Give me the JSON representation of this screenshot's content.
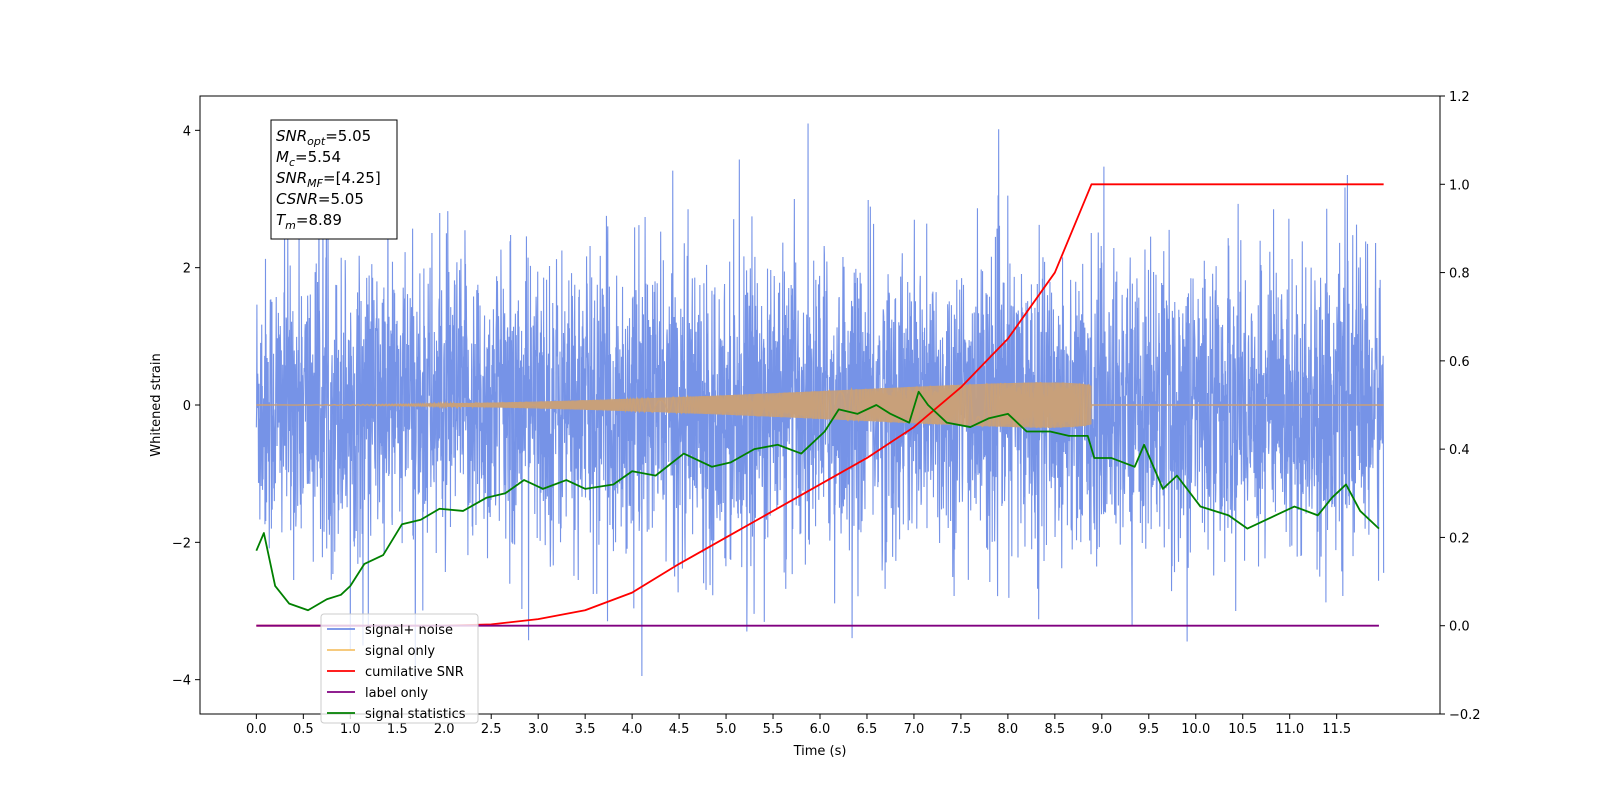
{
  "chart_data": {
    "type": "line",
    "title": "",
    "xlabel": "Time (s)",
    "ylabel": "Whitened strain",
    "y2label": "",
    "xlim": [
      -0.6,
      12.6
    ],
    "ylim": [
      -4.5,
      4.5
    ],
    "y2lim": [
      -0.2,
      1.2
    ],
    "xticks": [
      "0.0",
      "0.5",
      "1.0",
      "1.5",
      "2.0",
      "2.5",
      "3.0",
      "3.5",
      "4.0",
      "4.5",
      "5.0",
      "5.5",
      "6.0",
      "6.5",
      "7.0",
      "7.5",
      "8.0",
      "8.5",
      "9.0",
      "9.5",
      "10.0",
      "10.5",
      "11.0",
      "11.5"
    ],
    "yticks": [
      "4",
      "2",
      "0",
      "−2",
      "−4"
    ],
    "y2ticks": [
      "1.2",
      "1.0",
      "0.8",
      "0.6",
      "0.4",
      "0.2",
      "0.0",
      "−0.2"
    ],
    "grid": false,
    "legend_position": "lower-left",
    "series": [
      {
        "name": "signal+ noise",
        "axis": "left",
        "color": "#6f8de6",
        "style": "noise band",
        "x_range": [
          0.0,
          12.0
        ],
        "envelope_max": [
          4.1,
          3.9
        ],
        "envelope_min": [
          -4.0,
          -3.4
        ]
      },
      {
        "name": "signal only",
        "axis": "left",
        "color": "#f5c26b",
        "style": "chirp",
        "x_range": [
          0.0,
          8.89
        ],
        "final_amplitude": 0.55
      },
      {
        "name": "cumilative SNR",
        "axis": "right",
        "color": "#ff0000",
        "x": [
          0.0,
          2.0,
          2.5,
          3.0,
          3.5,
          4.0,
          4.5,
          5.0,
          5.5,
          6.0,
          6.5,
          7.0,
          7.5,
          8.0,
          8.5,
          8.89,
          9.5,
          10.0,
          11.0,
          12.0
        ],
        "y": [
          0.0,
          0.0,
          0.003,
          0.015,
          0.035,
          0.075,
          0.14,
          0.2,
          0.26,
          0.32,
          0.38,
          0.45,
          0.54,
          0.65,
          0.8,
          1.0,
          1.0,
          1.0,
          1.0,
          1.0
        ]
      },
      {
        "name": "label only",
        "axis": "right",
        "color": "#800080",
        "x": [
          0.0,
          11.95
        ],
        "y": [
          0.0,
          0.0
        ]
      },
      {
        "name": "signal statistics",
        "axis": "right",
        "color": "#008000",
        "x": [
          0.0,
          0.08,
          0.2,
          0.35,
          0.55,
          0.75,
          0.9,
          1.0,
          1.15,
          1.35,
          1.55,
          1.75,
          1.95,
          2.2,
          2.45,
          2.65,
          2.85,
          3.05,
          3.3,
          3.5,
          3.8,
          4.0,
          4.25,
          4.55,
          4.85,
          5.05,
          5.3,
          5.55,
          5.8,
          6.05,
          6.2,
          6.4,
          6.6,
          6.75,
          6.95,
          7.05,
          7.15,
          7.35,
          7.6,
          7.8,
          8.0,
          8.2,
          8.45,
          8.65,
          8.85,
          8.92,
          9.1,
          9.35,
          9.45,
          9.65,
          9.8,
          10.05,
          10.35,
          10.55,
          10.85,
          11.05,
          11.3,
          11.45,
          11.6,
          11.75,
          11.95
        ],
        "y": [
          0.17,
          0.21,
          0.09,
          0.05,
          0.035,
          0.06,
          0.07,
          0.09,
          0.14,
          0.16,
          0.23,
          0.24,
          0.265,
          0.26,
          0.29,
          0.3,
          0.33,
          0.31,
          0.33,
          0.31,
          0.32,
          0.35,
          0.34,
          0.39,
          0.36,
          0.37,
          0.4,
          0.41,
          0.39,
          0.44,
          0.49,
          0.48,
          0.5,
          0.48,
          0.46,
          0.53,
          0.5,
          0.46,
          0.45,
          0.47,
          0.48,
          0.44,
          0.44,
          0.43,
          0.43,
          0.38,
          0.38,
          0.36,
          0.41,
          0.31,
          0.34,
          0.27,
          0.25,
          0.22,
          0.25,
          0.27,
          0.25,
          0.29,
          0.32,
          0.26,
          0.22
        ]
      }
    ],
    "annotation": [
      {
        "base": "SNR",
        "sub": "opt",
        "value": "=5.05"
      },
      {
        "base": "M",
        "sub": "c",
        "value": "=5.54"
      },
      {
        "base": "SNR",
        "sub": "MF",
        "value": "=[4.25]"
      },
      {
        "base": "CSNR",
        "sub": "",
        "value": "=5.05"
      },
      {
        "base": "T",
        "sub": "m",
        "value": "=8.89"
      }
    ]
  }
}
